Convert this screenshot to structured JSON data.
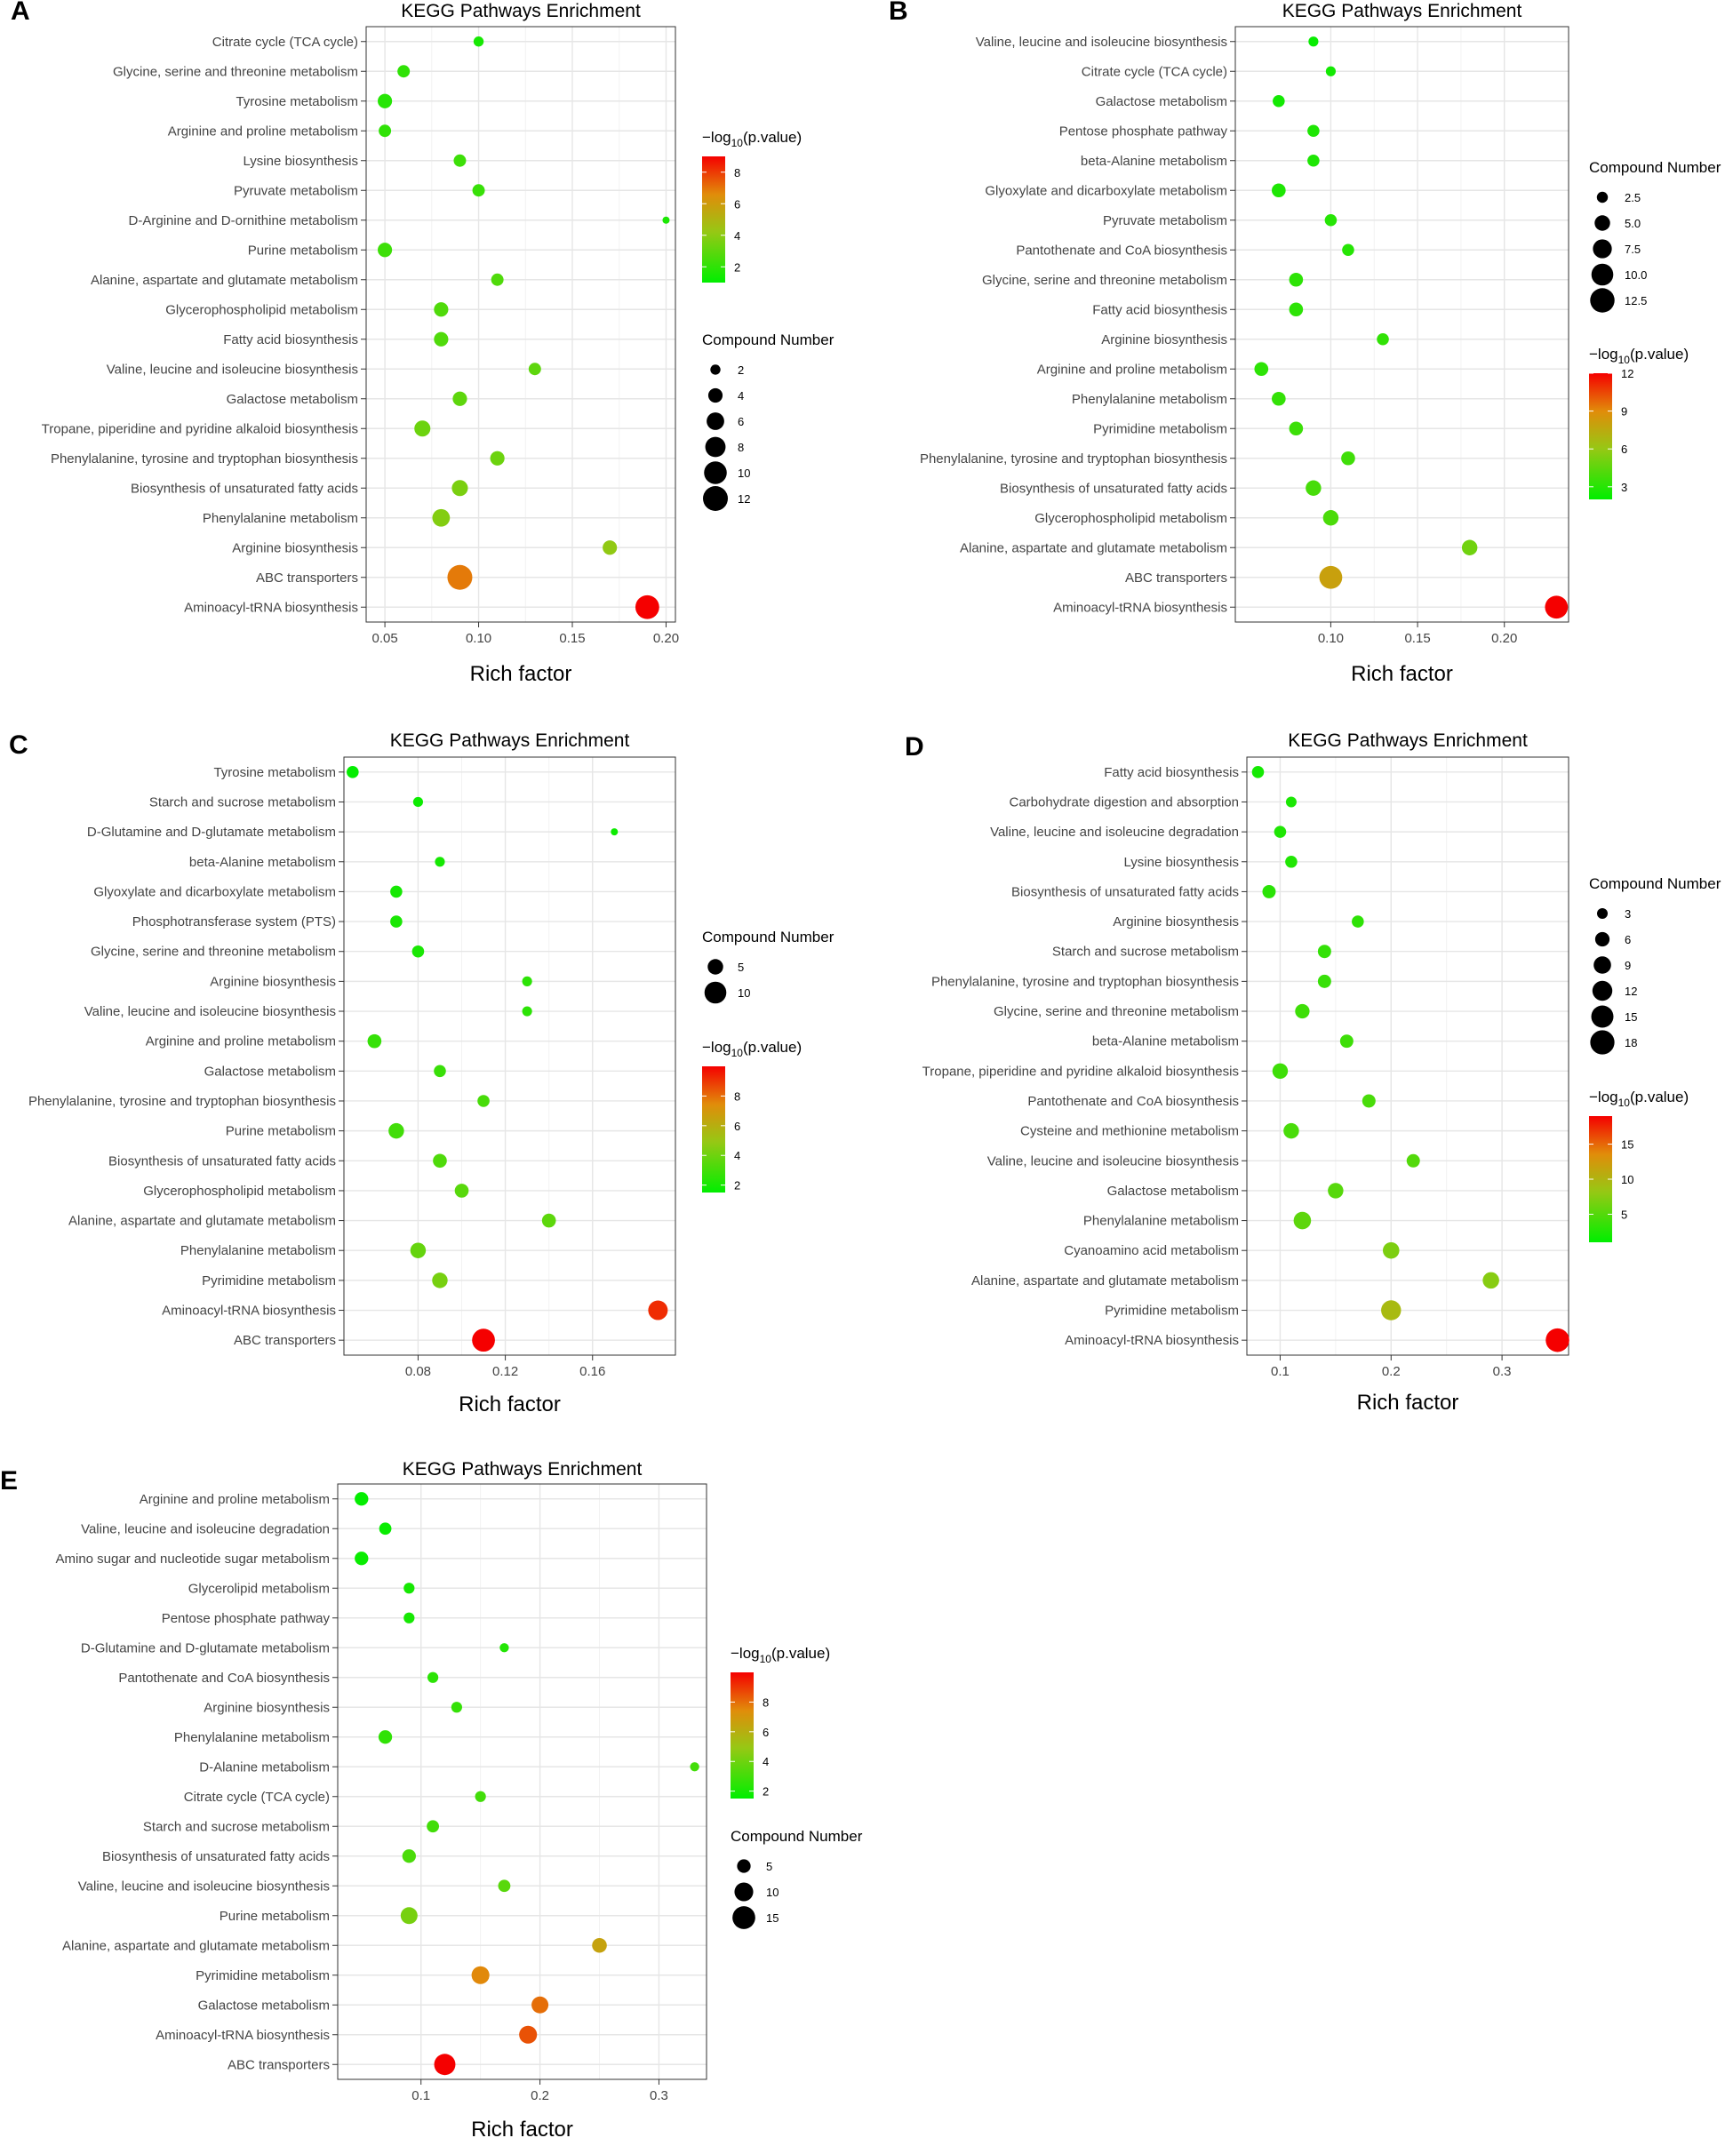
{
  "chart_data": [
    {
      "panel": "A",
      "type": "scatter",
      "title": "KEGG Pathways Enrichment",
      "xlabel": "Rich factor",
      "xlim": [
        0.04,
        0.205
      ],
      "xticks": [
        0.05,
        0.1,
        0.15,
        0.2
      ],
      "xtick_labels": [
        "0.05",
        "0.10",
        "0.15",
        "0.20"
      ],
      "color_legend_title": "−log10(p.value)",
      "color_range": [
        1,
        9
      ],
      "color_ticks": [
        2,
        4,
        6,
        8
      ],
      "size_legend_title": "Compound Number",
      "size_range": [
        1,
        12
      ],
      "size_ticks": [
        2,
        4,
        6,
        8,
        10,
        12
      ],
      "pathways": [
        "Citrate cycle (TCA cycle)",
        "Glycine, serine and threonine metabolism",
        "Tyrosine metabolism",
        "Arginine and proline metabolism",
        "Lysine biosynthesis",
        "Pyruvate metabolism",
        "D-Arginine and D-ornithine metabolism",
        "Purine metabolism",
        "Alanine, aspartate and glutamate metabolism",
        "Glycerophospholipid metabolism",
        "Fatty acid biosynthesis",
        "Valine, leucine and isoleucine biosynthesis",
        "Galactose metabolism",
        "Tropane, piperidine and pyridine alkaloid biosynthesis",
        "Phenylalanine, tyrosine and tryptophan biosynthesis",
        "Biosynthesis of unsaturated fatty acids",
        "Phenylalanine metabolism",
        "Arginine biosynthesis",
        "ABC transporters",
        "Aminoacyl-tRNA biosynthesis"
      ],
      "rich_factor": [
        0.1,
        0.06,
        0.05,
        0.05,
        0.09,
        0.1,
        0.2,
        0.05,
        0.11,
        0.08,
        0.08,
        0.13,
        0.09,
        0.07,
        0.11,
        0.09,
        0.08,
        0.17,
        0.09,
        0.19
      ],
      "compound_number": [
        2,
        3,
        4,
        3,
        3,
        3,
        1,
        4,
        3,
        4,
        4,
        3,
        4,
        5,
        4,
        5,
        6,
        4,
        12,
        11
      ],
      "neg_log10_p": [
        1.5,
        2.0,
        1.8,
        2.0,
        2.3,
        2.2,
        1.6,
        2.3,
        2.7,
        2.7,
        2.7,
        3.0,
        3.0,
        3.3,
        3.3,
        3.6,
        3.8,
        4.1,
        6.9,
        9.0
      ]
    },
    {
      "panel": "B",
      "type": "scatter",
      "title": "KEGG Pathways Enrichment",
      "xlabel": "Rich factor",
      "xlim": [
        0.045,
        0.237
      ],
      "xticks": [
        0.1,
        0.15,
        0.2
      ],
      "xtick_labels": [
        "0.10",
        "0.15",
        "0.20"
      ],
      "color_legend_title": "−log10(p.value)",
      "color_range": [
        2,
        12
      ],
      "color_ticks": [
        3,
        6,
        9,
        12
      ],
      "size_legend_title": "Compound Number",
      "size_range": [
        1,
        13
      ],
      "size_ticks": [
        2.5,
        5.0,
        7.5,
        10.0,
        12.5
      ],
      "size_tick_labels": [
        "2.5",
        "5.0",
        "7.5",
        "10.0",
        "12.5"
      ],
      "pathways": [
        "Valine, leucine and isoleucine biosynthesis",
        "Citrate cycle (TCA cycle)",
        "Galactose metabolism",
        "Pentose phosphate pathway",
        "beta-Alanine metabolism",
        "Glyoxylate and dicarboxylate metabolism",
        "Pyruvate metabolism",
        "Pantothenate and CoA biosynthesis",
        "Glycine, serine and threonine metabolism",
        "Fatty acid biosynthesis",
        "Arginine biosynthesis",
        "Arginine and proline metabolism",
        "Phenylalanine metabolism",
        "Pyrimidine metabolism",
        "Phenylalanine, tyrosine and tryptophan biosynthesis",
        "Biosynthesis of unsaturated fatty acids",
        "Glycerophospholipid metabolism",
        "Alanine, aspartate and glutamate metabolism",
        "ABC transporters",
        "Aminoacyl-tRNA biosynthesis"
      ],
      "rich_factor": [
        0.09,
        0.1,
        0.07,
        0.09,
        0.09,
        0.07,
        0.1,
        0.11,
        0.08,
        0.08,
        0.13,
        0.06,
        0.07,
        0.08,
        0.11,
        0.09,
        0.1,
        0.18,
        0.1,
        0.23
      ],
      "compound_number": [
        2,
        2,
        3,
        3,
        3,
        4,
        3,
        3,
        4,
        4,
        3,
        4,
        4,
        4,
        4,
        5,
        5,
        5,
        11,
        11
      ],
      "neg_log10_p": [
        2.2,
        2.5,
        2.5,
        2.8,
        2.8,
        2.8,
        3.0,
        3.0,
        3.2,
        3.2,
        3.3,
        3.2,
        3.4,
        3.6,
        3.7,
        3.9,
        4.0,
        5.0,
        8.0,
        12.2
      ]
    },
    {
      "panel": "C",
      "type": "scatter",
      "title": "KEGG Pathways Enrichment",
      "xlabel": "Rich factor",
      "xlim": [
        0.046,
        0.198
      ],
      "xticks": [
        0.08,
        0.12,
        0.16
      ],
      "xtick_labels": [
        "0.08",
        "0.12",
        "0.16"
      ],
      "color_legend_title": "−log10(p.value)",
      "color_range": [
        1.5,
        10
      ],
      "color_ticks": [
        2,
        4,
        6,
        8
      ],
      "size_legend_title": "Compound Number",
      "size_range": [
        1,
        13
      ],
      "size_ticks": [
        5,
        10
      ],
      "pathways": [
        "Tyrosine metabolism",
        "Starch and sucrose metabolism",
        "D-Glutamine and D-glutamate metabolism",
        "beta-Alanine metabolism",
        "Glyoxylate and dicarboxylate metabolism",
        "Phosphotransferase system (PTS)",
        "Glycine, serine and threonine metabolism",
        "Arginine biosynthesis",
        "Valine, leucine and isoleucine biosynthesis",
        "Arginine and proline metabolism",
        "Galactose metabolism",
        "Phenylalanine, tyrosine and tryptophan biosynthesis",
        "Purine metabolism",
        "Biosynthesis of unsaturated fatty acids",
        "Glycerophospholipid metabolism",
        "Alanine, aspartate and glutamate metabolism",
        "Phenylalanine metabolism",
        "Pyrimidine metabolism",
        "Aminoacyl-tRNA biosynthesis",
        "ABC transporters"
      ],
      "rich_factor": [
        0.05,
        0.08,
        0.17,
        0.09,
        0.07,
        0.07,
        0.08,
        0.13,
        0.13,
        0.06,
        0.09,
        0.11,
        0.07,
        0.09,
        0.1,
        0.14,
        0.08,
        0.09,
        0.19,
        0.11
      ],
      "compound_number": [
        3,
        2,
        1,
        2,
        3,
        3,
        3,
        2,
        2,
        4,
        3,
        3,
        5,
        4,
        4,
        4,
        5,
        5,
        8,
        11
      ],
      "neg_log10_p": [
        1.6,
        1.8,
        1.8,
        2.0,
        2.0,
        2.1,
        2.1,
        2.5,
        2.5,
        2.7,
        2.8,
        3.1,
        3.0,
        3.3,
        3.5,
        3.6,
        3.8,
        4.2,
        9.2,
        10.0
      ]
    },
    {
      "panel": "D",
      "type": "scatter",
      "title": "KEGG Pathways Enrichment",
      "xlabel": "Rich factor",
      "xlim": [
        0.07,
        0.36
      ],
      "xticks": [
        0.1,
        0.2,
        0.3
      ],
      "xtick_labels": [
        "0.1",
        "0.2",
        "0.3"
      ],
      "color_legend_title": "−log10(p.value)",
      "color_range": [
        1,
        19
      ],
      "color_ticks": [
        5,
        10,
        15
      ],
      "size_legend_title": "Compound Number",
      "size_range": [
        1,
        19
      ],
      "size_ticks": [
        3,
        6,
        9,
        12,
        15,
        18
      ],
      "pathways": [
        "Fatty acid biosynthesis",
        "Carbohydrate digestion and absorption",
        "Valine, leucine and isoleucine degradation",
        "Lysine biosynthesis",
        "Biosynthesis of unsaturated fatty acids",
        "Arginine biosynthesis",
        "Starch and sucrose metabolism",
        "Phenylalanine, tyrosine and tryptophan biosynthesis",
        "Glycine, serine and threonine metabolism",
        "beta-Alanine metabolism",
        "Tropane, piperidine and pyridine alkaloid biosynthesis",
        "Pantothenate and CoA biosynthesis",
        "Cysteine and methionine metabolism",
        "Valine, leucine and isoleucine biosynthesis",
        "Galactose metabolism",
        "Phenylalanine metabolism",
        "Cyanoamino acid metabolism",
        "Alanine, aspartate and glutamate metabolism",
        "Pyrimidine metabolism",
        "Aminoacyl-tRNA biosynthesis"
      ],
      "rich_factor": [
        0.08,
        0.11,
        0.1,
        0.11,
        0.09,
        0.17,
        0.14,
        0.14,
        0.12,
        0.16,
        0.1,
        0.18,
        0.11,
        0.22,
        0.15,
        0.12,
        0.2,
        0.29,
        0.2,
        0.35
      ],
      "compound_number": [
        4,
        3,
        4,
        4,
        5,
        4,
        5,
        5,
        6,
        5,
        7,
        5,
        7,
        5,
        7,
        9,
        8,
        8,
        12,
        17
      ],
      "neg_log10_p": [
        2.0,
        2.3,
        2.5,
        2.6,
        3.0,
        3.2,
        3.5,
        3.7,
        4.0,
        4.0,
        4.0,
        4.5,
        4.5,
        5.0,
        5.2,
        5.5,
        7.0,
        7.5,
        9.5,
        19.0
      ]
    },
    {
      "panel": "E",
      "type": "scatter",
      "title": "KEGG Pathways Enrichment",
      "xlabel": "Rich factor",
      "xlim": [
        0.03,
        0.34
      ],
      "xticks": [
        0.1,
        0.2,
        0.3
      ],
      "xtick_labels": [
        "0.1",
        "0.2",
        "0.3"
      ],
      "color_legend_title": "−log10(p.value)",
      "color_range": [
        1.5,
        10
      ],
      "color_ticks": [
        2,
        4,
        6,
        8
      ],
      "size_legend_title": "Compound Number",
      "size_range": [
        1,
        18
      ],
      "size_ticks": [
        5,
        10,
        15
      ],
      "pathways": [
        "Arginine and proline metabolism",
        "Valine, leucine and isoleucine degradation",
        "Amino sugar and nucleotide sugar metabolism",
        "Glycerolipid metabolism",
        "Pentose phosphate pathway",
        "D-Glutamine and D-glutamate metabolism",
        "Pantothenate and CoA biosynthesis",
        "Arginine biosynthesis",
        "Phenylalanine metabolism",
        "D-Alanine metabolism",
        "Citrate cycle (TCA cycle)",
        "Starch and sucrose metabolism",
        "Biosynthesis of unsaturated fatty acids",
        "Valine, leucine and isoleucine biosynthesis",
        "Purine metabolism",
        "Alanine, aspartate and glutamate metabolism",
        "Pyrimidine metabolism",
        "Galactose metabolism",
        "Aminoacyl-tRNA biosynthesis",
        "ABC transporters"
      ],
      "rich_factor": [
        0.05,
        0.07,
        0.05,
        0.09,
        0.09,
        0.17,
        0.11,
        0.13,
        0.07,
        0.33,
        0.15,
        0.11,
        0.09,
        0.17,
        0.09,
        0.25,
        0.15,
        0.2,
        0.19,
        0.12
      ],
      "compound_number": [
        5,
        4,
        5,
        3,
        3,
        2,
        3,
        3,
        5,
        2,
        3,
        4,
        5,
        4,
        8,
        6,
        9,
        8,
        9,
        13
      ],
      "neg_log10_p": [
        1.6,
        1.7,
        1.7,
        2.0,
        2.0,
        2.3,
        2.5,
        2.7,
        2.6,
        3.0,
        3.0,
        3.0,
        3.2,
        3.5,
        4.2,
        6.5,
        7.5,
        8.0,
        8.5,
        10.0
      ]
    }
  ]
}
